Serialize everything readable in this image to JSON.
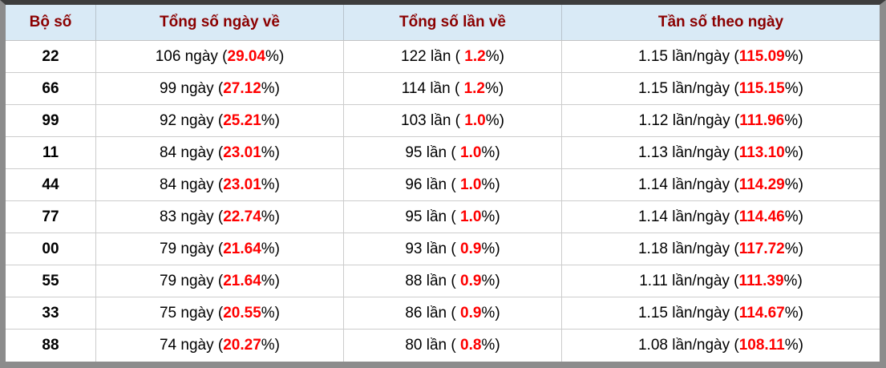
{
  "colors": {
    "top_bar": "#3d3d3d",
    "frame_gray": "#8c8c8c",
    "header_bg": "#d9eaf6",
    "header_text": "#8b0000",
    "highlight_red": "#ff0000",
    "row_border": "#cccccc"
  },
  "table": {
    "headers": [
      "Bộ số",
      "Tổng số ngày về",
      "Tổng số lần về",
      "Tần số theo ngày"
    ],
    "rows": [
      {
        "pair": "22",
        "days": {
          "pre": "106 ngày (",
          "pct": "29.04",
          "post": "%)"
        },
        "times": {
          "pre": "122 lần ( ",
          "pct": "1.2",
          "post": "%)"
        },
        "freq": {
          "pre": "1.15 lần/ngày (",
          "pct": "115.09",
          "post": "%)"
        }
      },
      {
        "pair": "66",
        "days": {
          "pre": "99 ngày (",
          "pct": "27.12",
          "post": "%)"
        },
        "times": {
          "pre": "114 lần ( ",
          "pct": "1.2",
          "post": "%)"
        },
        "freq": {
          "pre": "1.15 lần/ngày (",
          "pct": "115.15",
          "post": "%)"
        }
      },
      {
        "pair": "99",
        "days": {
          "pre": "92 ngày (",
          "pct": "25.21",
          "post": "%)"
        },
        "times": {
          "pre": "103 lần ( ",
          "pct": "1.0",
          "post": "%)"
        },
        "freq": {
          "pre": "1.12 lần/ngày (",
          "pct": "111.96",
          "post": "%)"
        }
      },
      {
        "pair": "11",
        "days": {
          "pre": "84 ngày (",
          "pct": "23.01",
          "post": "%)"
        },
        "times": {
          "pre": "95 lần ( ",
          "pct": "1.0",
          "post": "%)"
        },
        "freq": {
          "pre": "1.13 lần/ngày (",
          "pct": "113.10",
          "post": "%)"
        }
      },
      {
        "pair": "44",
        "days": {
          "pre": "84 ngày (",
          "pct": "23.01",
          "post": "%)"
        },
        "times": {
          "pre": "96 lần ( ",
          "pct": "1.0",
          "post": "%)"
        },
        "freq": {
          "pre": "1.14 lần/ngày (",
          "pct": "114.29",
          "post": "%)"
        }
      },
      {
        "pair": "77",
        "days": {
          "pre": "83 ngày (",
          "pct": "22.74",
          "post": "%)"
        },
        "times": {
          "pre": "95 lần ( ",
          "pct": "1.0",
          "post": "%)"
        },
        "freq": {
          "pre": "1.14 lần/ngày (",
          "pct": "114.46",
          "post": "%)"
        }
      },
      {
        "pair": "00",
        "days": {
          "pre": "79 ngày (",
          "pct": "21.64",
          "post": "%)"
        },
        "times": {
          "pre": "93 lần ( ",
          "pct": "0.9",
          "post": "%)"
        },
        "freq": {
          "pre": "1.18 lần/ngày (",
          "pct": "117.72",
          "post": "%)"
        }
      },
      {
        "pair": "55",
        "days": {
          "pre": "79 ngày (",
          "pct": "21.64",
          "post": "%)"
        },
        "times": {
          "pre": "88 lần ( ",
          "pct": "0.9",
          "post": "%)"
        },
        "freq": {
          "pre": "1.11 lần/ngày (",
          "pct": "111.39",
          "post": "%)"
        }
      },
      {
        "pair": "33",
        "days": {
          "pre": "75 ngày (",
          "pct": "20.55",
          "post": "%)"
        },
        "times": {
          "pre": "86 lần ( ",
          "pct": "0.9",
          "post": "%)"
        },
        "freq": {
          "pre": "1.15 lần/ngày (",
          "pct": "114.67",
          "post": "%)"
        }
      },
      {
        "pair": "88",
        "days": {
          "pre": "74 ngày (",
          "pct": "20.27",
          "post": "%)"
        },
        "times": {
          "pre": "80 lần ( ",
          "pct": "0.8",
          "post": "%)"
        },
        "freq": {
          "pre": "1.08 lần/ngày (",
          "pct": "108.11",
          "post": "%)"
        }
      }
    ]
  }
}
